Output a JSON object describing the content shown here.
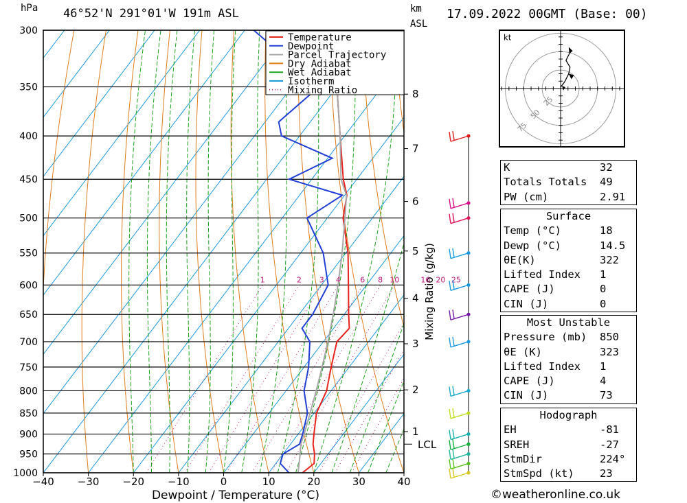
{
  "header": {
    "p_unit": "hPa",
    "location": "46°52'N  291°01'W  191m  ASL",
    "km_unit": "km",
    "asl_unit": "ASL",
    "datetime": "17.09.2022  00GMT  (Base: 00)"
  },
  "chart_data": {
    "type": "line",
    "xlabel": "Dewpoint / Temperature (°C)",
    "ylabel": "",
    "xlim": [
      -40,
      40
    ],
    "ylim": [
      1000,
      300
    ],
    "x_ticks": [
      "−40",
      "−30",
      "−20",
      "−10",
      "0",
      "10",
      "20",
      "30",
      "40"
    ],
    "pressure_ticks": [
      {
        "p": 300,
        "label": "300"
      },
      {
        "p": 350,
        "label": "350"
      },
      {
        "p": 400,
        "label": "400"
      },
      {
        "p": 450,
        "label": "450"
      },
      {
        "p": 500,
        "label": "500"
      },
      {
        "p": 550,
        "label": "550"
      },
      {
        "p": 600,
        "label": "600"
      },
      {
        "p": 650,
        "label": "650"
      },
      {
        "p": 700,
        "label": "700"
      },
      {
        "p": 750,
        "label": "750"
      },
      {
        "p": 800,
        "label": "800"
      },
      {
        "p": 850,
        "label": "850"
      },
      {
        "p": 900,
        "label": "900"
      },
      {
        "p": 950,
        "label": "950"
      },
      {
        "p": 1000,
        "label": "1000"
      }
    ],
    "km_ticks": [
      {
        "p": 357,
        "label": "8"
      },
      {
        "p": 414,
        "label": "7"
      },
      {
        "p": 478,
        "label": "6"
      },
      {
        "p": 547,
        "label": "5"
      },
      {
        "p": 622,
        "label": "4"
      },
      {
        "p": 704,
        "label": "3"
      },
      {
        "p": 798,
        "label": "2"
      },
      {
        "p": 894,
        "label": "1"
      }
    ],
    "lcl": {
      "p": 925,
      "label": "LCL"
    },
    "mixing_ratio_axis_label": "Mixing Ratio (g/kg)",
    "mixing_ratio_labels": [
      "1",
      "2",
      "3",
      "4",
      "6",
      "8",
      "10",
      "16",
      "20",
      "25"
    ],
    "mixing_ratio_values": [
      1,
      2,
      3,
      4,
      6,
      8,
      10,
      16,
      20,
      25
    ],
    "legend": {
      "placement": "top-right",
      "items": [
        {
          "label": "Temperature",
          "color": "#e8211d",
          "style": "solid"
        },
        {
          "label": "Dewpoint",
          "color": "#1f3fd6",
          "style": "solid"
        },
        {
          "label": "Parcel Trajectory",
          "color": "#a8a8a8",
          "style": "solid"
        },
        {
          "label": "Dry Adiabat",
          "color": "#e07c1a",
          "style": "solid"
        },
        {
          "label": "Wet Adiabat",
          "color": "#1aa31a",
          "style": "solid"
        },
        {
          "label": "Isotherm",
          "color": "#1a9ae0",
          "style": "solid"
        },
        {
          "label": "Mixing Ratio",
          "color": "#c0157a",
          "style": "dotted"
        }
      ]
    },
    "series": [
      {
        "name": "Temperature",
        "color": "#e8211d",
        "points": [
          [
            1000,
            17.5
          ],
          [
            975,
            18.5
          ],
          [
            950,
            17
          ],
          [
            925,
            15
          ],
          [
            900,
            13.5
          ],
          [
            850,
            10.5
          ],
          [
            800,
            9
          ],
          [
            750,
            6
          ],
          [
            700,
            3
          ],
          [
            675,
            3.5
          ],
          [
            650,
            1
          ],
          [
            600,
            -4
          ],
          [
            550,
            -9.5
          ],
          [
            500,
            -16.5
          ],
          [
            470,
            -19.5
          ],
          [
            450,
            -23
          ],
          [
            400,
            -31
          ],
          [
            350,
            -40
          ],
          [
            300,
            -49
          ]
        ]
      },
      {
        "name": "Dewpoint",
        "color": "#1f3fd6",
        "points": [
          [
            1000,
            14.5
          ],
          [
            975,
            11
          ],
          [
            950,
            10
          ],
          [
            925,
            12
          ],
          [
            900,
            11
          ],
          [
            850,
            8.5
          ],
          [
            800,
            4
          ],
          [
            750,
            1
          ],
          [
            700,
            -3
          ],
          [
            675,
            -7
          ],
          [
            650,
            -7
          ],
          [
            600,
            -8.5
          ],
          [
            550,
            -15
          ],
          [
            500,
            -24.5
          ],
          [
            470,
            -20.5
          ],
          [
            450,
            -35
          ],
          [
            425,
            -29
          ],
          [
            400,
            -44
          ],
          [
            385,
            -47
          ],
          [
            350,
            -44
          ],
          [
            300,
            -68
          ]
        ]
      },
      {
        "name": "Parcel Trajectory",
        "color": "#a8a8a8",
        "points": [
          [
            1000,
            16.5
          ],
          [
            950,
            13.8
          ],
          [
            925,
            12.3
          ],
          [
            900,
            11.3
          ],
          [
            850,
            9.1
          ],
          [
            800,
            6.7
          ],
          [
            750,
            4
          ],
          [
            700,
            1
          ],
          [
            650,
            -2.4
          ],
          [
            600,
            -6.3
          ],
          [
            550,
            -10.8
          ],
          [
            500,
            -16.1
          ],
          [
            470,
            -19.6
          ],
          [
            450,
            -23.5
          ],
          [
            400,
            -31
          ],
          [
            350,
            -40
          ],
          [
            300,
            -51
          ]
        ]
      }
    ],
    "wind_barb_levels": [
      1000,
      975,
      950,
      925,
      900,
      850,
      800,
      700,
      650,
      600,
      550,
      500,
      480,
      400
    ],
    "wind_colors": [
      "#d7c61d",
      "#55c218",
      "#1fb79c",
      "#0fb03c",
      "#19b0b0",
      "#c0dd20",
      "#18aacc",
      "#1a9ae0",
      "#7a1aa8",
      "#1a9ae0",
      "#1a9ae0",
      "#e00f57",
      "#d80f8c",
      "#e01818"
    ]
  },
  "hodograph": {
    "unit": "kt",
    "ring_labels": [
      "25",
      "50",
      "75"
    ]
  },
  "indices_table": {
    "rows": [
      {
        "k": "K",
        "v": "32"
      },
      {
        "k": "Totals Totals",
        "v": "49"
      },
      {
        "k": "PW (cm)",
        "v": "2.91"
      }
    ]
  },
  "surface_table": {
    "title": "Surface",
    "rows": [
      {
        "k": "Temp (°C)",
        "v": "18"
      },
      {
        "k": "Dewp (°C)",
        "v": "14.5"
      },
      {
        "k": "θE(K)",
        "v": "322"
      },
      {
        "k": "Lifted Index",
        "v": "1"
      },
      {
        "k": "CAPE (J)",
        "v": "0"
      },
      {
        "k": "CIN (J)",
        "v": "0"
      }
    ]
  },
  "unstable_table": {
    "title": "Most Unstable",
    "rows": [
      {
        "k": "Pressure (mb)",
        "v": "850"
      },
      {
        "k": "θE (K)",
        "v": "323"
      },
      {
        "k": "Lifted Index",
        "v": "1"
      },
      {
        "k": "CAPE (J)",
        "v": "4"
      },
      {
        "k": "CIN (J)",
        "v": "73"
      }
    ]
  },
  "hodograph_table": {
    "title": "Hodograph",
    "rows": [
      {
        "k": "EH",
        "v": "-81"
      },
      {
        "k": "SREH",
        "v": "-27"
      },
      {
        "k": "StmDir",
        "v": "224°"
      },
      {
        "k": "StmSpd (kt)",
        "v": "23"
      }
    ]
  },
  "footer": {
    "credit": "©weatheronline.co.uk"
  }
}
